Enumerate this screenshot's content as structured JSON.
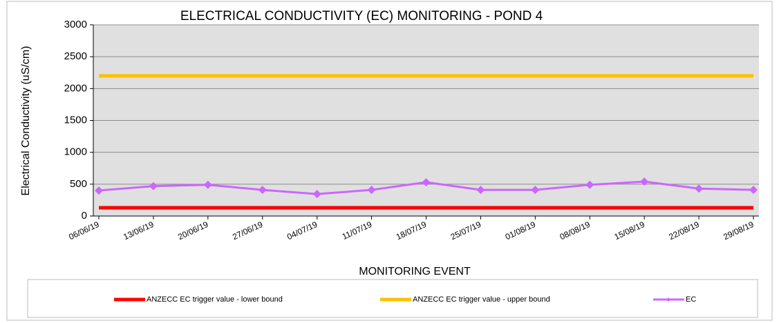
{
  "chart_data": {
    "type": "line",
    "title": "ELECTRICAL CONDUCTIVITY (EC) MONITORING - POND 4",
    "x_label": "MONITORING EVENT",
    "y_label": "Electrical Conductivity (uS/cm)",
    "categories": [
      "06/06/19",
      "13/06/19",
      "20/06/19",
      "27/06/19",
      "04/07/19",
      "11/07/19",
      "18/07/19",
      "25/07/19",
      "01/08/19",
      "08/08/19",
      "15/08/19",
      "22/08/19",
      "29/08/19"
    ],
    "series": [
      {
        "name": "ANZECC EC trigger value - lower bound",
        "color": "#ff0000",
        "marker": false,
        "values": [
          130,
          130,
          130,
          130,
          130,
          130,
          130,
          130,
          130,
          130,
          130,
          130,
          130
        ]
      },
      {
        "name": "ANZECC EC trigger value - upper bound",
        "color": "#ffc000",
        "marker": false,
        "values": [
          2200,
          2200,
          2200,
          2200,
          2200,
          2200,
          2200,
          2200,
          2200,
          2200,
          2200,
          2200,
          2200
        ]
      },
      {
        "name": "EC",
        "color": "#cc66ff",
        "marker": true,
        "values": [
          400,
          470,
          490,
          410,
          345,
          410,
          530,
          410,
          410,
          490,
          540,
          430,
          410
        ]
      }
    ],
    "ylim": [
      0,
      3000
    ],
    "yticks": [
      0,
      500,
      1000,
      1500,
      2000,
      2500,
      3000
    ],
    "grid": true
  }
}
